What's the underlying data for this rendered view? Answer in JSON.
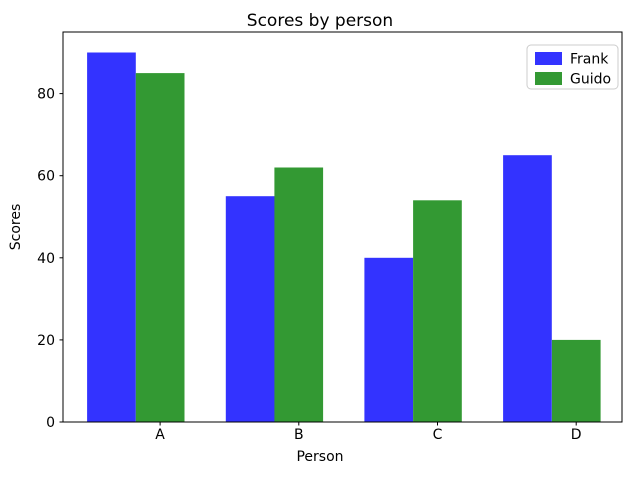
{
  "chart_data": {
    "type": "bar",
    "title": "Scores by person",
    "xlabel": "Person",
    "ylabel": "Scores",
    "categories": [
      "A",
      "B",
      "C",
      "D"
    ],
    "series": [
      {
        "name": "Frank",
        "color": "#3333FF",
        "values": [
          90,
          55,
          40,
          65
        ]
      },
      {
        "name": "Guido",
        "color": "#339933",
        "values": [
          85,
          62,
          54,
          20
        ]
      }
    ],
    "yticks": [
      0,
      20,
      40,
      60,
      80
    ],
    "ylim": [
      0,
      95
    ],
    "grid": false,
    "legend_position": "upper right",
    "background": "#FFFFFF"
  }
}
